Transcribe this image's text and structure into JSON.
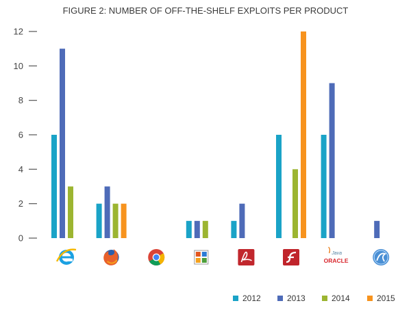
{
  "chart_data": {
    "type": "bar",
    "title": "FIGURE 2: NUMBER OF OFF-THE-SHELF EXPLOITS PER PRODUCT",
    "xlabel": "",
    "ylabel": "",
    "ylim": [
      0,
      12
    ],
    "yticks": [
      "0",
      "2",
      "4",
      "6",
      "8",
      "10",
      "12"
    ],
    "categories": [
      "internet-explorer-icon",
      "firefox-icon",
      "chrome-icon",
      "office-icon",
      "adobe-reader-icon",
      "flash-icon",
      "java-oracle-icon",
      "silverlight-icon"
    ],
    "oracle_logo_text": {
      "java": "Java",
      "oracle": "ORACLE"
    },
    "series": [
      {
        "name": "2012",
        "color": "#1aa3c7",
        "values": [
          6,
          2,
          0,
          1,
          1,
          6,
          6,
          0
        ]
      },
      {
        "name": "2013",
        "color": "#4e6bb8",
        "values": [
          11,
          3,
          0,
          1,
          2,
          0,
          9,
          1
        ]
      },
      {
        "name": "2014",
        "color": "#9cb531",
        "values": [
          3,
          2,
          0,
          1,
          0,
          4,
          0,
          0
        ]
      },
      {
        "name": "2015",
        "color": "#f7931e",
        "values": [
          0,
          2,
          0,
          0,
          0,
          12,
          0,
          0
        ]
      }
    ],
    "legend_position": "bottom-right",
    "grid": false
  }
}
